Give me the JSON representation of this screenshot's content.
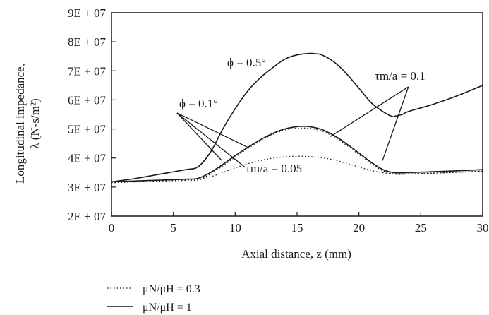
{
  "chart_data": {
    "type": "line",
    "xlabel": "Axial distance, z (mm)",
    "ylabel": "Longitudinal impedance, λ (N-s/m²)",
    "ylabel_line1": "Longitudinal impedance,",
    "ylabel_line2": "λ (N-s/m²)",
    "xlim": [
      0,
      30
    ],
    "ylim": [
      20000000,
      90000000
    ],
    "x_ticks": [
      0,
      5,
      10,
      15,
      20,
      25,
      30
    ],
    "x_tick_labels": [
      "0",
      "5",
      "10",
      "15",
      "20",
      "25",
      "30"
    ],
    "y_ticks": [
      20000000,
      30000000,
      40000000,
      50000000,
      60000000,
      70000000,
      80000000,
      90000000
    ],
    "y_tick_labels": [
      "2E + 07",
      "3E + 07",
      "4E + 07",
      "5E + 07",
      "6E + 07",
      "7E + 07",
      "8E + 07",
      "9E + 07"
    ],
    "grid": false,
    "series": [
      {
        "style": "solid",
        "annotation": "φ = 0.5°",
        "x": [
          0,
          2,
          4,
          6,
          7,
          8,
          9,
          10,
          11,
          12,
          13,
          14,
          15,
          16,
          16.5,
          17,
          18,
          19,
          20,
          21,
          22,
          22.7,
          23,
          23.5,
          24,
          26,
          28,
          30
        ],
        "y": [
          31800000,
          33000000,
          34500000,
          36000000,
          37000000,
          42000000,
          50000000,
          57000000,
          63000000,
          67500000,
          71000000,
          74000000,
          75500000,
          76000000,
          75900000,
          75500000,
          73000000,
          69000000,
          64000000,
          59000000,
          55800000,
          54300000,
          54500000,
          55000000,
          56000000,
          58500000,
          61500000,
          65000000
        ]
      },
      {
        "style": "solid",
        "annotation": "φ = 0.1°, τm/a = 0.1",
        "x": [
          0,
          2,
          4,
          6,
          7,
          8,
          9,
          10,
          11,
          12,
          13,
          14,
          15,
          15.5,
          16,
          17,
          18,
          19,
          20,
          21,
          22,
          23,
          24,
          26,
          28,
          30
        ],
        "y": [
          31800000,
          32100000,
          32400000,
          32700000,
          33000000,
          35000000,
          37800000,
          40800000,
          43600000,
          46200000,
          48400000,
          50000000,
          50800000,
          50900000,
          50800000,
          49800000,
          47700000,
          44900000,
          41700000,
          38500000,
          35900000,
          34900000,
          35000000,
          35300000,
          35600000,
          36000000
        ]
      },
      {
        "style": "dotted",
        "annotation": "φ = 0.1°, τm/a = 0.1",
        "x": [
          0,
          2,
          4,
          6,
          7,
          8,
          9,
          10,
          11,
          12,
          13,
          14,
          15,
          15.5,
          16,
          17,
          18,
          19,
          20,
          21,
          22,
          23,
          24,
          26,
          28,
          30
        ],
        "y": [
          31500000,
          31800000,
          32100000,
          32300000,
          32500000,
          34500000,
          37300000,
          40300000,
          43200000,
          45800000,
          48000000,
          49600000,
          50200000,
          50300000,
          50200000,
          49300000,
          47200000,
          44400000,
          41200000,
          38000000,
          35500000,
          34400000,
          34500000,
          34800000,
          35100000,
          35500000
        ]
      },
      {
        "style": "dotted",
        "annotation": "φ = 0.1°, τm/a = 0.05",
        "x": [
          0,
          2,
          4,
          6,
          7,
          8,
          9,
          10,
          11,
          12,
          13,
          14,
          15,
          16,
          17,
          18,
          19,
          20,
          21,
          22,
          23,
          24,
          26,
          28,
          30
        ],
        "y": [
          31500000,
          31800000,
          32100000,
          32300000,
          32500000,
          33500000,
          35000000,
          36600000,
          38000000,
          39100000,
          39900000,
          40400000,
          40600000,
          40500000,
          40100000,
          39300000,
          38200000,
          36900000,
          35700000,
          34900000,
          34500000,
          34500000,
          34800000,
          35100000,
          35500000
        ]
      }
    ],
    "annotations": {
      "phi_05": "ϕ = 0.5°",
      "phi_01": "ϕ = 0.1°",
      "tau_01": "τm/a = 0.1",
      "tau_005": "τm/a = 0.05"
    },
    "legend": [
      {
        "style": "dotted",
        "label": "μN/μH = 0.3"
      },
      {
        "style": "solid",
        "label": "μN/μH = 1"
      }
    ]
  },
  "colors": {
    "line": "#1a1a1a",
    "background": "#ffffff"
  }
}
